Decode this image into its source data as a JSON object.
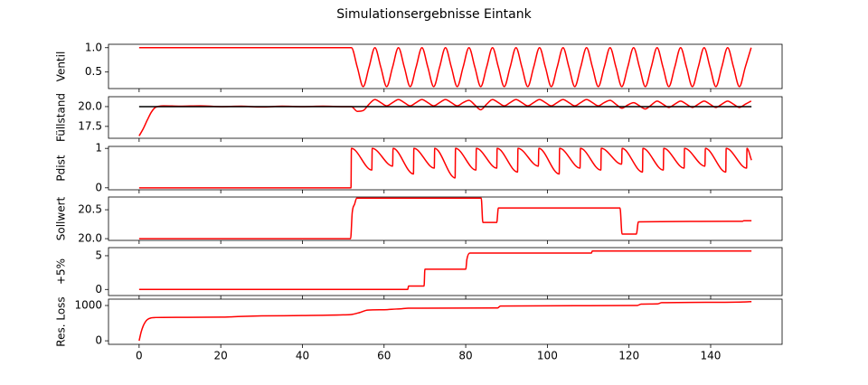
{
  "title": "Simulationsergebnisse Eintank",
  "chart_data": [
    {
      "type": "line",
      "ylabel": "Ventil",
      "xlim": [
        -7.5,
        157.5
      ],
      "xticks": [
        0,
        20,
        40,
        60,
        80,
        100,
        120,
        140
      ],
      "ylim": [
        0.16,
        1.07
      ],
      "yticks": [
        0.5,
        {
          "value": 1,
          "label": "1.0"
        }
      ],
      "series": [
        {
          "color": "#ff0000",
          "x": [
            0,
            52,
            53.44,
            54.88,
            56.32,
            57.76,
            59.2,
            60.64,
            62.08,
            63.52,
            64.96,
            66.4,
            67.84,
            69.28,
            70.72,
            72.16,
            73.6,
            75.04,
            76.48,
            77.92,
            79.36,
            80.8,
            82.24,
            83.68,
            85.12,
            86.56,
            88,
            89.44,
            90.88,
            92.32,
            93.76,
            95.2,
            96.64,
            98.08,
            99.52,
            100.96,
            102.4,
            103.84,
            105.28,
            106.72,
            108.16,
            109.6,
            111.04,
            112.48,
            113.92,
            115.36,
            116.8,
            118.24,
            119.68,
            121.12,
            122.56,
            124,
            125.44,
            126.88,
            128.32,
            129.76,
            131.2,
            132.64,
            134.08,
            135.52,
            136.96,
            138.4,
            139.84,
            141.28,
            142.72,
            144.16,
            145.6,
            147.04,
            148.48,
            149.92
          ],
          "values": [
            1,
            1,
            0.6,
            0.2,
            0.6,
            1,
            0.6,
            0.2,
            0.6,
            1,
            0.6,
            0.2,
            0.6,
            1,
            0.6,
            0.2,
            0.6,
            1,
            0.6,
            0.2,
            0.6,
            1,
            0.6,
            0.2,
            0.6,
            1,
            0.6,
            0.2,
            0.6,
            1,
            0.6,
            0.2,
            0.6,
            1,
            0.6,
            0.2,
            0.6,
            1,
            0.6,
            0.2,
            0.6,
            1,
            0.6,
            0.2,
            0.6,
            1,
            0.6,
            0.2,
            0.6,
            1,
            0.6,
            0.2,
            0.6,
            1,
            0.6,
            0.2,
            0.6,
            1,
            0.6,
            0.2,
            0.6,
            1,
            0.6,
            0.2,
            0.6,
            1,
            0.6,
            0.2,
            0.6,
            1
          ]
        }
      ]
    },
    {
      "type": "line",
      "ylabel": "Füllstand",
      "xlim": [
        -7.5,
        157.5
      ],
      "xticks": [
        0,
        20,
        40,
        60,
        80,
        100,
        120,
        140
      ],
      "ylim": [
        16.0,
        21.25
      ],
      "yticks": [
        17.5,
        {
          "value": 20,
          "label": "20.0"
        }
      ],
      "series": [
        {
          "color": "#ff0000",
          "x": [
            0,
            1,
            2,
            3,
            4,
            6,
            10,
            15,
            20,
            25,
            30,
            35,
            40,
            45,
            50,
            52,
            53.44,
            54.88,
            56.32,
            57.76,
            59.2,
            60.64,
            62.08,
            63.52,
            64.96,
            66.4,
            67.84,
            69.28,
            70.72,
            72.16,
            73.6,
            75.04,
            76.48,
            77.92,
            79.36,
            80.8,
            82.24,
            83.68,
            85.12,
            86.56,
            88,
            89.44,
            90.88,
            92.32,
            93.76,
            95.2,
            96.64,
            98.08,
            99.52,
            100.96,
            102.4,
            103.84,
            105.28,
            106.72,
            108.16,
            109.6,
            111.04,
            112.48,
            113.92,
            115.36,
            116.8,
            118.24,
            119.68,
            121.12,
            122.56,
            124,
            125.44,
            126.88,
            128.32,
            129.76,
            131.2,
            132.64,
            134.08,
            135.52,
            136.96,
            138.4,
            139.84,
            141.28,
            142.72,
            144.16,
            145.6,
            147.04,
            148.48,
            149.92
          ],
          "values": [
            16.3,
            17.2,
            18.3,
            19.3,
            19.9,
            20.1,
            20.05,
            20.1,
            20.0,
            20.05,
            19.95,
            20.05,
            20.0,
            20.05,
            20.0,
            20.0,
            19.4,
            19.5,
            20.3,
            20.9,
            20.5,
            20.1,
            20.5,
            20.9,
            20.5,
            20.1,
            20.5,
            20.9,
            20.5,
            20.1,
            20.5,
            20.9,
            20.5,
            20.1,
            20.5,
            20.8,
            20.2,
            19.6,
            20.3,
            20.9,
            20.5,
            20.1,
            20.5,
            20.9,
            20.5,
            20.1,
            20.5,
            20.9,
            20.5,
            20.1,
            20.5,
            20.9,
            20.5,
            20.1,
            20.5,
            20.9,
            20.5,
            20.1,
            20.5,
            20.8,
            20.3,
            19.8,
            20.2,
            20.5,
            20.1,
            19.7,
            20.2,
            20.7,
            20.3,
            19.9,
            20.3,
            20.7,
            20.3,
            19.9,
            20.3,
            20.7,
            20.3,
            19.9,
            20.3,
            20.7,
            20.3,
            19.9,
            20.3,
            20.7
          ]
        },
        {
          "color": "#000000",
          "x": [
            0,
            150
          ],
          "values": [
            20,
            20
          ]
        }
      ]
    },
    {
      "type": "line",
      "ylabel": "Pdist",
      "xlim": [
        -7.5,
        157.5
      ],
      "xticks": [
        0,
        20,
        40,
        60,
        80,
        100,
        120,
        140
      ],
      "ylim": [
        -0.05,
        1.05
      ],
      "yticks": [
        0,
        1
      ],
      "series": [
        {
          "color": "#ff0000",
          "x": [
            0,
            51.9,
            52,
            57,
            57.1,
            62.1,
            62.2,
            67.2,
            67.3,
            72.3,
            72.4,
            77.4,
            77.5,
            82.5,
            82.6,
            87.6,
            87.7,
            92.7,
            92.8,
            97.8,
            97.9,
            102.9,
            103,
            108,
            108.1,
            113.1,
            113.2,
            118.2,
            118.3,
            123.3,
            123.4,
            128.4,
            128.5,
            133.5,
            133.6,
            138.6,
            138.7,
            143.7,
            143.8,
            148.8,
            148.9,
            150
          ],
          "values": [
            0,
            0,
            1,
            0.45,
            1,
            0.55,
            1,
            0.35,
            1,
            0.5,
            1,
            0.25,
            1,
            0.45,
            1,
            0.5,
            1,
            0.4,
            1,
            0.55,
            1,
            0.35,
            1,
            0.5,
            1,
            0.45,
            1,
            0.6,
            1,
            0.4,
            1,
            0.45,
            1,
            0.5,
            1,
            0.55,
            1,
            0.4,
            1,
            0.5,
            1,
            0.7
          ]
        }
      ]
    },
    {
      "type": "line",
      "ylabel": "Sollwert",
      "xlim": [
        -7.5,
        157.5
      ],
      "xticks": [
        0,
        20,
        40,
        60,
        80,
        100,
        120,
        140
      ],
      "ylim": [
        19.97,
        20.72
      ],
      "yticks": [
        {
          "value": 20,
          "label": "20.0"
        },
        20.5
      ],
      "series": [
        {
          "color": "#ff0000",
          "x": [
            0,
            51.8,
            52.2,
            52.8,
            53.3,
            83.8,
            84.2,
            87.6,
            88,
            117.8,
            118.3,
            121.8,
            122.3,
            147.8,
            148.1,
            150
          ],
          "values": [
            20.0,
            20.0,
            20.45,
            20.6,
            20.7,
            20.7,
            20.28,
            20.28,
            20.53,
            20.53,
            20.08,
            20.08,
            20.29,
            20.3,
            20.31,
            20.31
          ]
        }
      ]
    },
    {
      "type": "line",
      "ylabel": "+5%",
      "xlim": [
        -7.5,
        157.5
      ],
      "xticks": [
        0,
        20,
        40,
        60,
        80,
        100,
        120,
        140
      ],
      "ylim": [
        -0.9,
        6.2
      ],
      "yticks": [
        0,
        5
      ],
      "series": [
        {
          "color": "#ff0000",
          "x": [
            0,
            65.8,
            66,
            69.8,
            70,
            80,
            80.3,
            81,
            110.8,
            111,
            150
          ],
          "values": [
            0,
            0,
            0.5,
            0.5,
            3.0,
            3.0,
            4.5,
            5.4,
            5.4,
            5.7,
            5.7
          ]
        }
      ]
    },
    {
      "type": "line",
      "ylabel": "Res. Loss",
      "xlim": [
        -7.5,
        157.5
      ],
      "xticks": [
        0,
        20,
        40,
        60,
        80,
        100,
        120,
        140
      ],
      "ylim": [
        -100,
        1180
      ],
      "yticks": [
        0,
        1000
      ],
      "series": [
        {
          "color": "#ff0000",
          "x": [
            0,
            0.5,
            1,
            1.5,
            2,
            3,
            4,
            10,
            20,
            25,
            30,
            40,
            50,
            52,
            54,
            56,
            60,
            63,
            64,
            66,
            87.8,
            88.5,
            110,
            122,
            123,
            127,
            128,
            140,
            148,
            150
          ],
          "values": [
            0,
            250,
            420,
            530,
            600,
            650,
            660,
            665,
            670,
            690,
            705,
            715,
            735,
            745,
            800,
            870,
            880,
            900,
            905,
            925,
            930,
            985,
            995,
            1000,
            1040,
            1045,
            1080,
            1090,
            1100,
            1110
          ]
        }
      ]
    }
  ]
}
